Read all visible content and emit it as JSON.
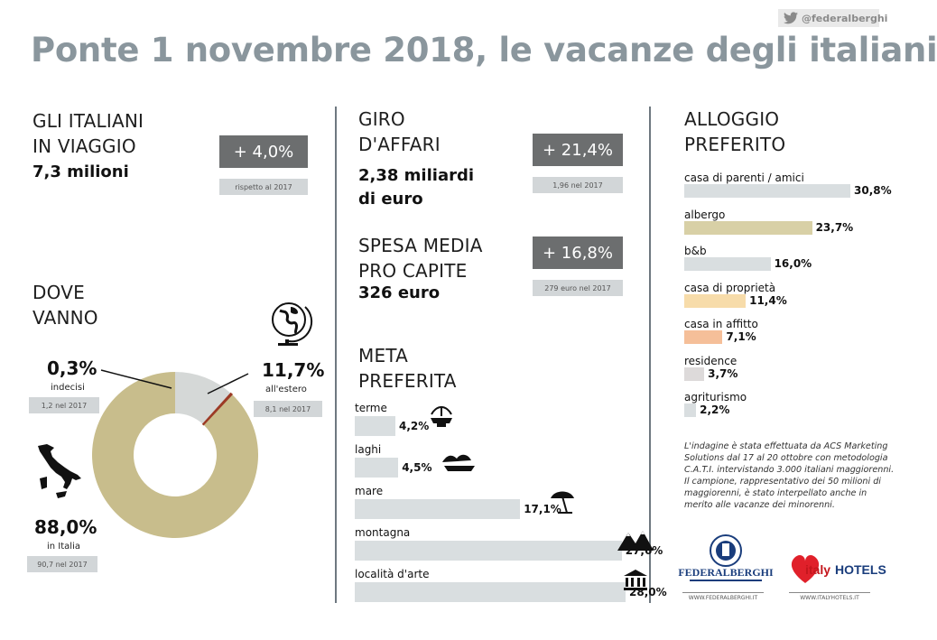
{
  "twitter": {
    "handle": "@federalberghi"
  },
  "title": "Ponte 1 novembre 2018, le vacanze degli italiani",
  "viaggio": {
    "head1": "GLI ITALIANI",
    "head2": "IN VIAGGIO",
    "value": "7,3 milioni",
    "change": "+ 4,0%",
    "note": "rispetto al 2017"
  },
  "affari": {
    "head1": "GIRO",
    "head2": "D'AFFARI",
    "value1": "2,38 miliardi",
    "value2": "di euro",
    "change": "+ 21,4%",
    "note": "1,96 nel 2017"
  },
  "spesa": {
    "head1": "SPESA MEDIA",
    "head2": "PRO CAPITE",
    "value": "326 euro",
    "change": "+ 16,8%",
    "note": "279 euro nel 2017"
  },
  "dove": {
    "head1": "DOVE",
    "head2": "VANNO",
    "indecisi": {
      "pct": "0,3%",
      "label": "indecisi",
      "note": "1,2 nel 2017"
    },
    "estero": {
      "pct": "11,7%",
      "label": "all'estero",
      "note": "8,1 nel 2017"
    },
    "italia": {
      "pct": "88,0%",
      "label": "in Italia",
      "note": "90,7 nel 2017"
    }
  },
  "chart_data": [
    {
      "type": "pie",
      "categories": [
        "in Italia",
        "all'estero",
        "indecisi"
      ],
      "values": [
        88.0,
        11.7,
        0.3
      ],
      "colors": [
        "#c8bd8c",
        "#d5d8d7",
        "#9c3a25"
      ]
    },
    {
      "type": "bar",
      "title": "META PREFERITA",
      "categories": [
        "terme",
        "laghi",
        "mare",
        "montagna",
        "località d'arte"
      ],
      "values": [
        4.2,
        4.5,
        17.1,
        27.6,
        28.0
      ],
      "labels": [
        "4,2%",
        "4,5%",
        "17,1%",
        "27,6%",
        "28,0%"
      ]
    },
    {
      "type": "bar",
      "title": "ALLOGGIO PREFERITO",
      "categories": [
        "casa di parenti / amici",
        "albergo",
        "b&b",
        "casa di proprietà",
        "casa in affitto",
        "residence",
        "agriturismo"
      ],
      "values": [
        30.8,
        23.7,
        16.0,
        11.4,
        7.1,
        3.7,
        2.2
      ],
      "labels": [
        "30,8%",
        "23,7%",
        "16,0%",
        "11,4%",
        "7,1%",
        "3,7%",
        "2,2%"
      ],
      "colors": [
        "#d9dee0",
        "#d8d0a6",
        "#d9dee0",
        "#f7dcaa",
        "#f5bf99",
        "#dddada",
        "#d9dee0"
      ]
    }
  ],
  "meta": {
    "head1": "META",
    "head2": "PREFERITA"
  },
  "alloggio": {
    "head1": "ALLOGGIO",
    "head2": "PREFERITO"
  },
  "survey": {
    "line1": "L'indagine è stata effettuata da ACS Marketing Solutions dal 17 al 20 ottobre con metodologia C.A.T.I. intervistando 3.000 italiani maggiorenni.",
    "line2": "Il campione, rappresentativo dei 50 milioni di maggiorenni, è stato interpellato anche in merito alle vacanze dei minorenni."
  },
  "logos": {
    "federalberghi": {
      "name": "FEDERALBERGHI",
      "url": "WWW.FEDERALBERGHI.IT"
    },
    "italyhotels": {
      "name": "italyHOTELS",
      "url": "WWW.ITALYHOTELS.IT"
    }
  }
}
